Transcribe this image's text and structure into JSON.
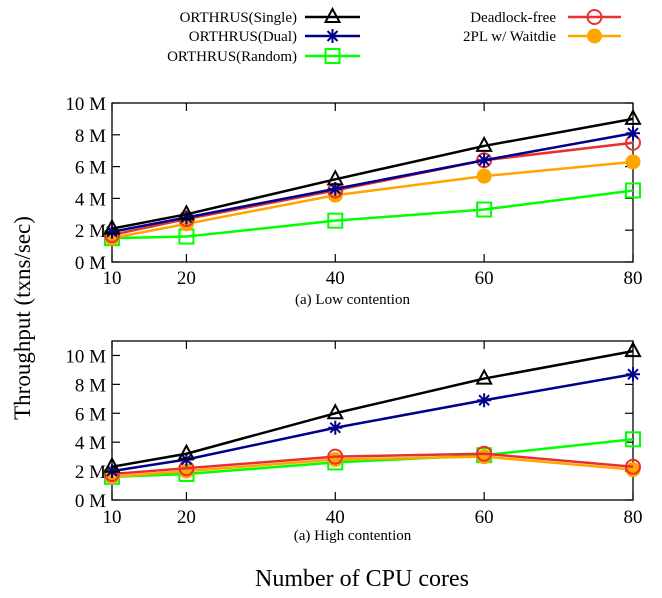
{
  "figure": {
    "ylabel": "Throughput (txns/sec)",
    "xlabel": "Number of CPU cores"
  },
  "legend": {
    "placement": "top",
    "entries": [
      {
        "name": "ORTHRUS(Single)",
        "color": "#000000",
        "marker": "triangle"
      },
      {
        "name": "ORTHRUS(Dual)",
        "color": "#00008b",
        "marker": "asterisk"
      },
      {
        "name": "ORTHRUS(Random)",
        "color": "#00ff00",
        "marker": "square"
      },
      {
        "name": "Deadlock-free",
        "color": "#e8312f",
        "marker": "circle-open"
      },
      {
        "name": "2PL w/ Waitdie",
        "color": "#ffa500",
        "marker": "circle-filled"
      }
    ]
  },
  "chart_data": [
    {
      "type": "line",
      "caption": "(a) Low contention",
      "x": [
        10,
        20,
        40,
        60,
        80
      ],
      "xticks": [
        "10",
        "20",
        "40",
        "60",
        "80"
      ],
      "ylim": [
        0,
        10
      ],
      "yticks": [
        "0 M",
        "2 M",
        "4 M",
        "6 M",
        "8 M",
        "10 M"
      ],
      "grid": false,
      "series": [
        {
          "name": "ORTHRUS(Single)",
          "values": [
            2.1,
            3.0,
            5.2,
            7.3,
            9.0
          ]
        },
        {
          "name": "ORTHRUS(Dual)",
          "values": [
            1.9,
            2.8,
            4.6,
            6.4,
            8.1
          ]
        },
        {
          "name": "ORTHRUS(Random)",
          "values": [
            1.5,
            1.6,
            2.6,
            3.3,
            4.5
          ]
        },
        {
          "name": "Deadlock-free",
          "values": [
            1.7,
            2.7,
            4.5,
            6.4,
            7.5
          ]
        },
        {
          "name": "2PL w/ Waitdie",
          "values": [
            1.5,
            2.4,
            4.2,
            5.4,
            6.3
          ]
        }
      ]
    },
    {
      "type": "line",
      "caption": "(a) High contention",
      "x": [
        10,
        20,
        40,
        60,
        80
      ],
      "xticks": [
        "10",
        "20",
        "40",
        "60",
        "80"
      ],
      "ylim": [
        0,
        11
      ],
      "yticks": [
        "0 M",
        "2 M",
        "4 M",
        "6 M",
        "8 M",
        "10 M"
      ],
      "grid": false,
      "series": [
        {
          "name": "ORTHRUS(Single)",
          "values": [
            2.3,
            3.2,
            6.0,
            8.4,
            10.3
          ]
        },
        {
          "name": "ORTHRUS(Dual)",
          "values": [
            2.0,
            2.8,
            5.0,
            6.9,
            8.7
          ]
        },
        {
          "name": "ORTHRUS(Random)",
          "values": [
            1.6,
            1.8,
            2.6,
            3.1,
            4.2
          ]
        },
        {
          "name": "Deadlock-free",
          "values": [
            1.8,
            2.2,
            3.0,
            3.2,
            2.3
          ]
        },
        {
          "name": "2PL w/ Waitdie",
          "values": [
            1.6,
            2.0,
            2.8,
            3.0,
            2.1
          ]
        }
      ]
    }
  ]
}
